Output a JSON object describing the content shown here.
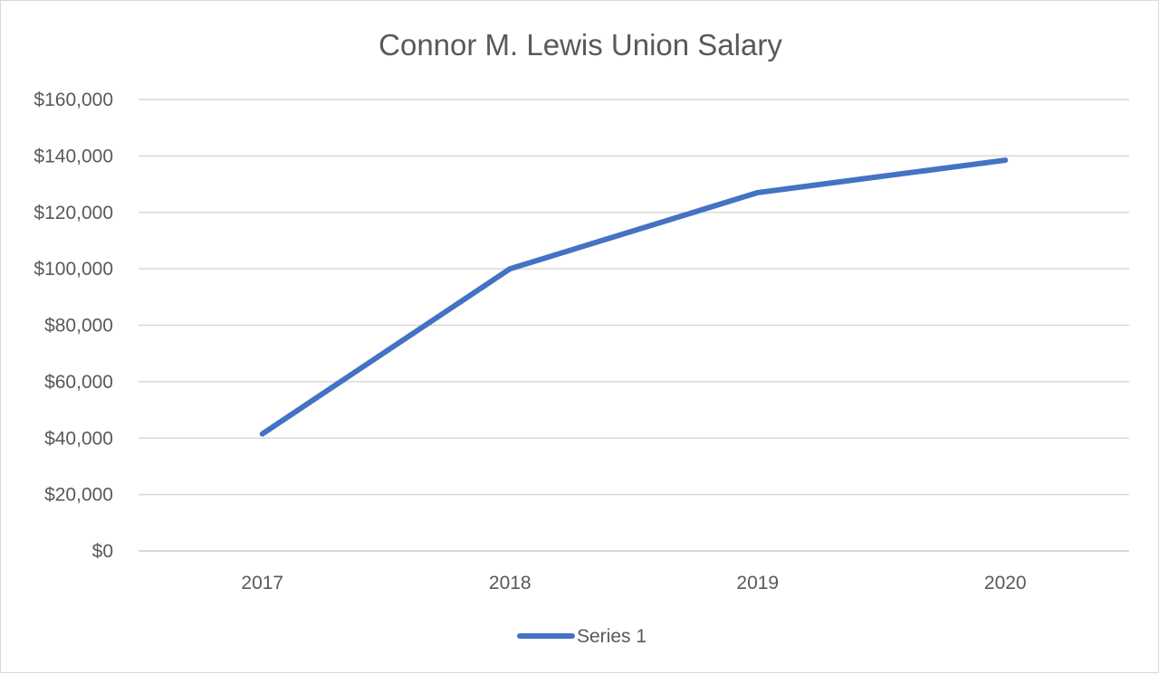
{
  "chart_data": {
    "type": "line",
    "title": "Connor M. Lewis Union Salary",
    "categories": [
      "2017",
      "2018",
      "2019",
      "2020"
    ],
    "series": [
      {
        "name": "Series 1",
        "values": [
          41500,
          100000,
          127000,
          138500
        ]
      }
    ],
    "y_ticks": [
      "$0",
      "$20,000",
      "$40,000",
      "$60,000",
      "$80,000",
      "$100,000",
      "$120,000",
      "$140,000",
      "$160,000"
    ],
    "ylim": [
      0,
      160000
    ],
    "grid": true,
    "legend": "bottom",
    "line_color": "#4472c4",
    "grid_color": "#d9d9d9"
  }
}
